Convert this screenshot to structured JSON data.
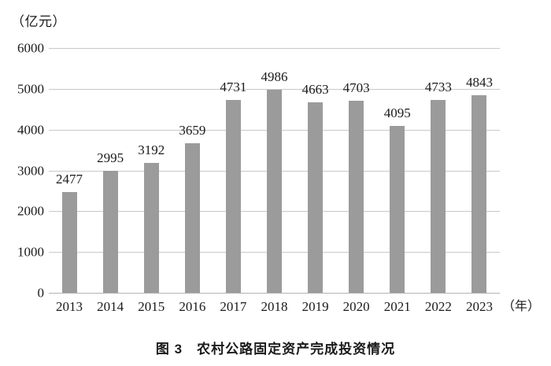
{
  "figure": {
    "unit_label": "（亿元）",
    "x_axis_suffix": "（年）",
    "caption": "图 3　农村公路固定资产完成投资情况"
  },
  "chart_data": {
    "type": "bar",
    "title": "图3 农村公路固定资产完成投资情况",
    "categories": [
      "2013",
      "2014",
      "2015",
      "2016",
      "2017",
      "2018",
      "2019",
      "2020",
      "2021",
      "2022",
      "2023"
    ],
    "values": [
      2477,
      2995,
      3192,
      3659,
      4731,
      4986,
      4663,
      4703,
      4095,
      4733,
      4843
    ],
    "ylabel": "（亿元）",
    "xlabel": "（年）",
    "ylim": [
      0,
      6000
    ],
    "ytick_step": 1000,
    "grid": true,
    "legend": "none",
    "bar_color": "#9b9b9b",
    "gridline_color": "#c9c9c9",
    "baseline_color": "#b3b3b3",
    "text_color": "#1a1a1a"
  }
}
